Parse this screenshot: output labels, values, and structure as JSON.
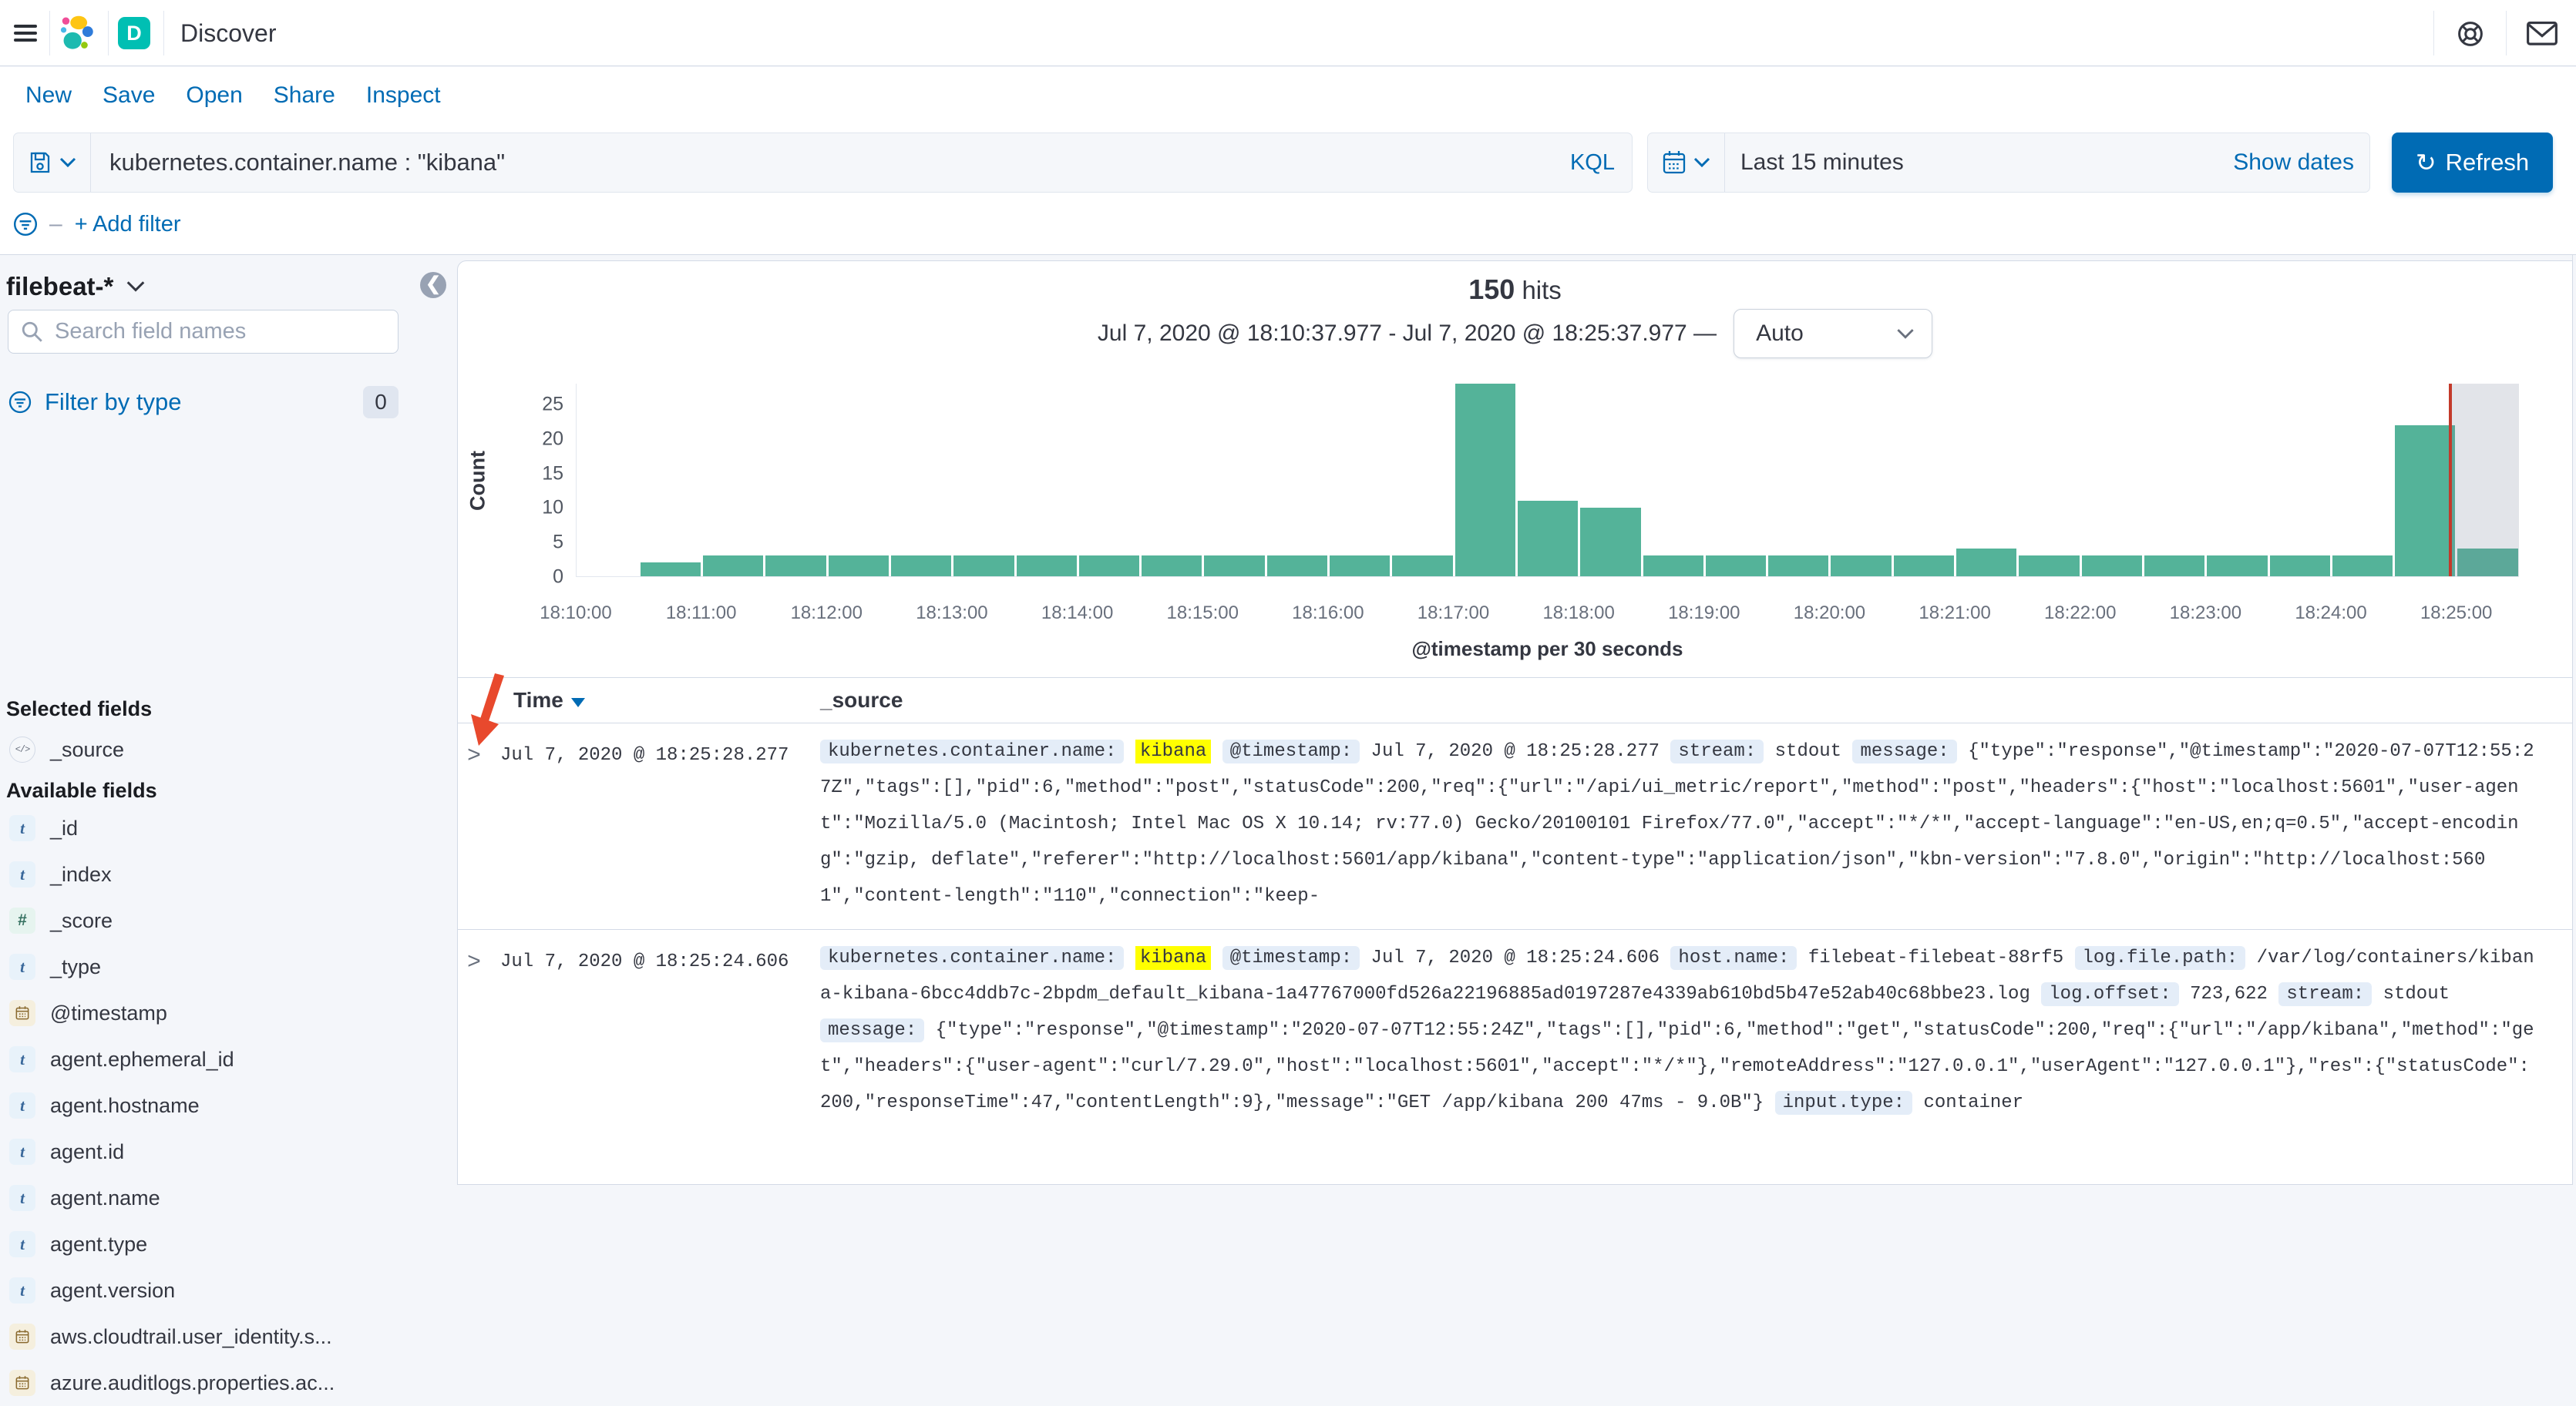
{
  "header": {
    "app_title": "Discover",
    "app_badge": "D"
  },
  "menu": {
    "items": [
      "New",
      "Save",
      "Open",
      "Share",
      "Inspect"
    ]
  },
  "query_bar": {
    "query": "kubernetes.container.name : \"kibana\"",
    "language_label": "KQL",
    "time_range": "Last 15 minutes",
    "show_dates_label": "Show dates",
    "refresh_label": "Refresh",
    "add_filter_label": "+ Add filter"
  },
  "sidebar": {
    "index_pattern": "filebeat-*",
    "search_placeholder": "Search field names",
    "filter_by_type_label": "Filter by type",
    "filter_count": "0",
    "selected_heading": "Selected fields",
    "selected_fields": [
      {
        "name": "_source",
        "type": "source"
      }
    ],
    "available_heading": "Available fields",
    "available_fields": [
      {
        "name": "_id",
        "type": "string"
      },
      {
        "name": "_index",
        "type": "string"
      },
      {
        "name": "_score",
        "type": "number"
      },
      {
        "name": "_type",
        "type": "string"
      },
      {
        "name": "@timestamp",
        "type": "date"
      },
      {
        "name": "agent.ephemeral_id",
        "type": "string"
      },
      {
        "name": "agent.hostname",
        "type": "string"
      },
      {
        "name": "agent.id",
        "type": "string"
      },
      {
        "name": "agent.name",
        "type": "string"
      },
      {
        "name": "agent.type",
        "type": "string"
      },
      {
        "name": "agent.version",
        "type": "string"
      },
      {
        "name": "aws.cloudtrail.user_identity.s...",
        "type": "date"
      },
      {
        "name": "azure.auditlogs.properties.ac...",
        "type": "date"
      }
    ]
  },
  "results_header": {
    "hits_count": "150",
    "hits_label": "hits",
    "range_title": "Jul 7, 2020 @ 18:10:37.977 - Jul 7, 2020 @ 18:25:37.977 —",
    "interval_value": "Auto"
  },
  "chart_data": {
    "type": "bar",
    "title": "150 hits",
    "xlabel": "@timestamp per 30 seconds",
    "ylabel": "Count",
    "ylim": [
      0,
      28
    ],
    "yticks": [
      0,
      5,
      10,
      15,
      20,
      25
    ],
    "x_start": "18:10:00",
    "bucket_seconds": 30,
    "x_tick_labels": [
      "18:10:00",
      "18:11:00",
      "18:12:00",
      "18:13:00",
      "18:14:00",
      "18:15:00",
      "18:16:00",
      "18:17:00",
      "18:18:00",
      "18:19:00",
      "18:20:00",
      "18:21:00",
      "18:22:00",
      "18:23:00",
      "18:24:00",
      "18:25:00"
    ],
    "values": [
      0,
      2,
      3,
      3,
      3,
      3,
      3,
      3,
      3,
      3,
      3,
      3,
      3,
      3,
      28,
      11,
      10,
      3,
      3,
      3,
      3,
      3,
      4,
      3,
      3,
      3,
      3,
      3,
      3,
      22,
      4
    ],
    "bar_color": "#54B399",
    "now_marker_fraction": 0.964,
    "now_marker_color": "#C33A2B",
    "grid": false,
    "legend": "none"
  },
  "doc_table": {
    "columns": {
      "time": "Time",
      "source": "_source"
    },
    "rows": [
      {
        "time": "Jul 7, 2020 @ 18:25:28.277",
        "tokens": [
          {
            "t": "field",
            "v": "kubernetes.container.name:"
          },
          {
            "t": "mark",
            "v": "kibana"
          },
          {
            "t": "field",
            "v": "@timestamp:"
          },
          {
            "t": "text",
            "v": "Jul 7, 2020 @ 18:25:28.277"
          },
          {
            "t": "field",
            "v": "stream:"
          },
          {
            "t": "text",
            "v": "stdout"
          },
          {
            "t": "field",
            "v": "message:"
          },
          {
            "t": "text",
            "v": "{\"type\":\"response\",\"@timestamp\":\"2020-07-07T12:55:27Z\",\"tags\":[],\"pid\":6,\"method\":\"post\",\"statusCode\":200,\"req\":{\"url\":\"/api/ui_metric/report\",\"method\":\"post\",\"headers\":{\"host\":\"localhost:5601\",\"user-agent\":\"Mozilla/5.0 (Macintosh; Intel Mac OS X 10.14; rv:77.0) Gecko/20100101 Firefox/77.0\",\"accept\":\"*/*\",\"accept-language\":\"en-US,en;q=0.5\",\"accept-encoding\":\"gzip, deflate\",\"referer\":\"http://localhost:5601/app/kibana\",\"content-type\":\"application/json\",\"kbn-version\":\"7.8.0\",\"origin\":\"http://localhost:5601\",\"content-length\":\"110\",\"connection\":\"keep-"
          }
        ]
      },
      {
        "time": "Jul 7, 2020 @ 18:25:24.606",
        "tokens": [
          {
            "t": "field",
            "v": "kubernetes.container.name:"
          },
          {
            "t": "mark",
            "v": "kibana"
          },
          {
            "t": "field",
            "v": "@timestamp:"
          },
          {
            "t": "text",
            "v": "Jul 7, 2020 @ 18:25:24.606"
          },
          {
            "t": "field",
            "v": "host.name:"
          },
          {
            "t": "text",
            "v": "filebeat-filebeat-88rf5"
          },
          {
            "t": "field",
            "v": "log.file.path:"
          },
          {
            "t": "text",
            "v": "/var/log/containers/kibana-kibana-6bcc4ddb7c-2bpdm_default_kibana-1a47767000fd526a22196885ad0197287e4339ab610bd5b47e52ab40c68bbe23.log"
          },
          {
            "t": "field",
            "v": "log.offset:"
          },
          {
            "t": "text",
            "v": "723,622"
          },
          {
            "t": "field",
            "v": "stream:"
          },
          {
            "t": "text",
            "v": "stdout"
          },
          {
            "t": "field",
            "v": "message:"
          },
          {
            "t": "text",
            "v": "{\"type\":\"response\",\"@timestamp\":\"2020-07-07T12:55:24Z\",\"tags\":[],\"pid\":6,\"method\":\"get\",\"statusCode\":200,\"req\":{\"url\":\"/app/kibana\",\"method\":\"get\",\"headers\":{\"user-agent\":\"curl/7.29.0\",\"host\":\"localhost:5601\",\"accept\":\"*/*\"},\"remoteAddress\":\"127.0.0.1\",\"userAgent\":\"127.0.0.1\"},\"res\":{\"statusCode\":200,\"responseTime\":47,\"contentLength\":9},\"message\":\"GET /app/kibana 200 47ms - 9.0B\"}"
          },
          {
            "t": "field",
            "v": "input.type:"
          },
          {
            "t": "text",
            "v": "container"
          }
        ]
      }
    ]
  }
}
